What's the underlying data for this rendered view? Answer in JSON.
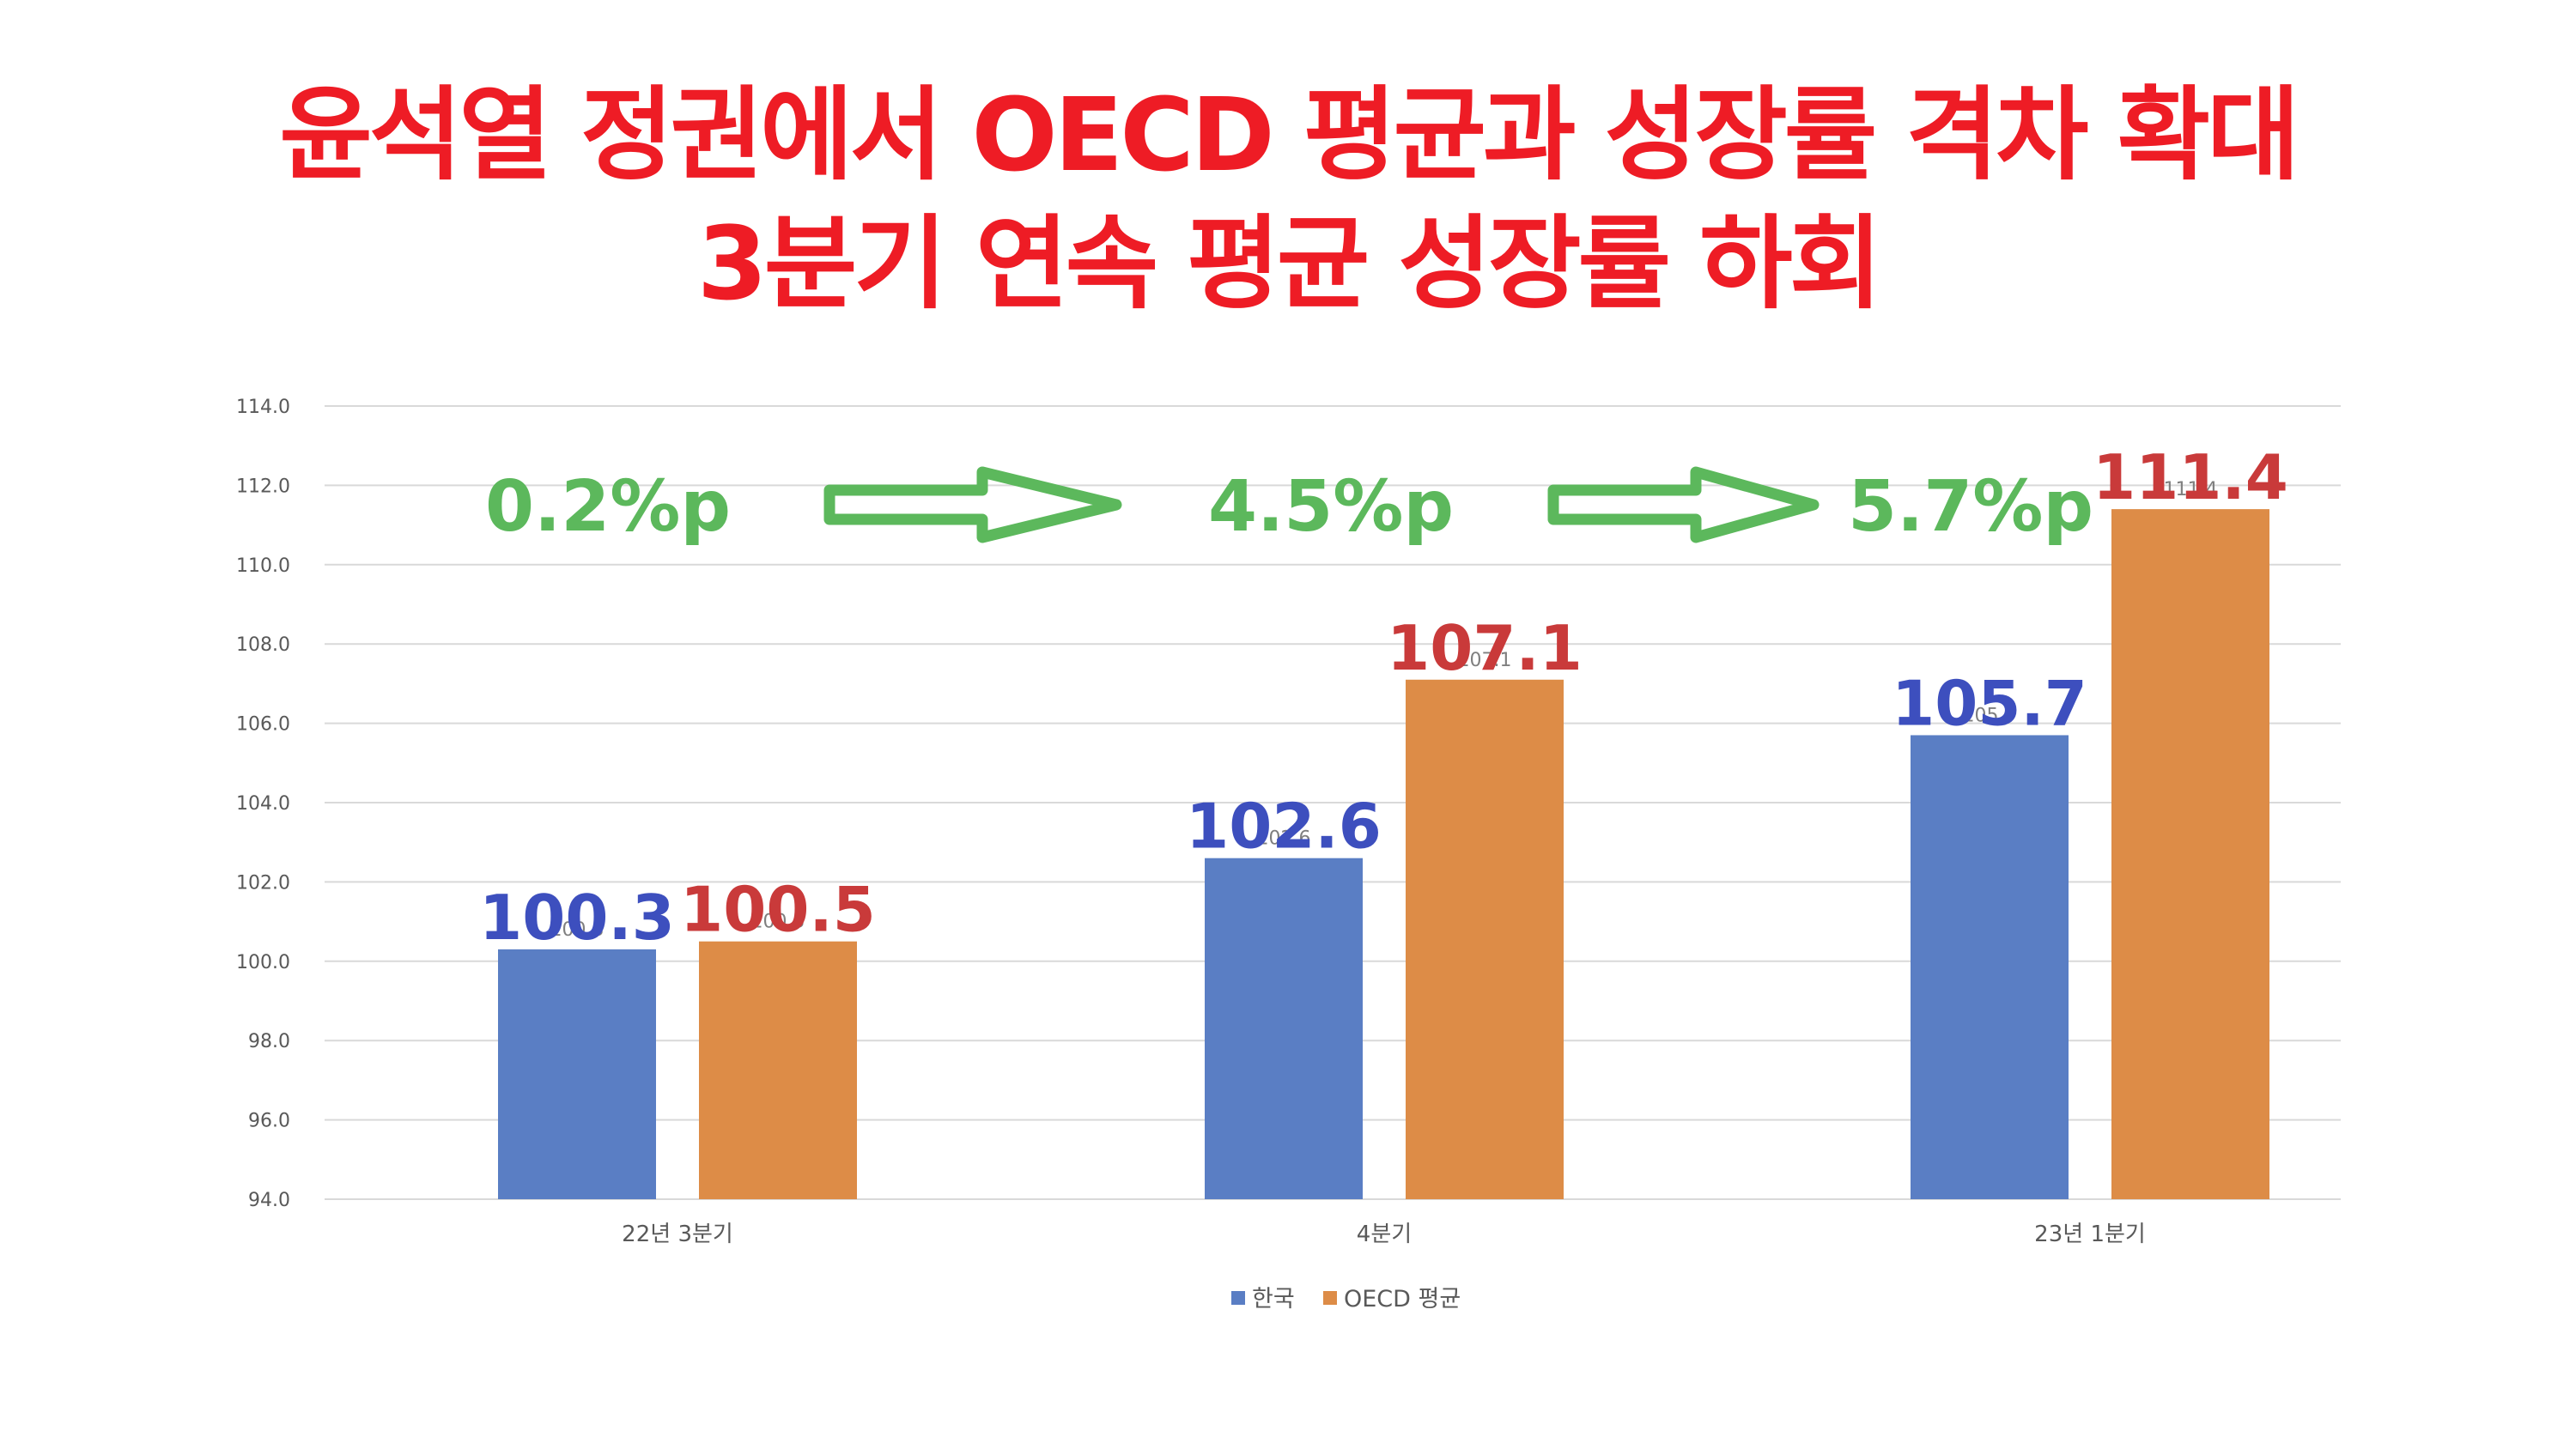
{
  "title": {
    "line1": "윤석열 정권에서 OECD 평균과 성장률 격차 확대",
    "line2": "3분기 연속 평균 성장률 하회"
  },
  "colors": {
    "title": "#ee1c25",
    "korea": "#5a7ec4",
    "oecd": "#dd8c47",
    "korea_label": "#3d4fbe",
    "oecd_label": "#c93a3a",
    "gap": "#5cb85c",
    "grid": "#d9d9d9"
  },
  "annotations": {
    "gaps": [
      "0.2%p",
      "4.5%p",
      "5.7%p"
    ],
    "arrows": [
      "right-arrow-icon",
      "right-arrow-icon"
    ]
  },
  "chart_data": {
    "type": "bar",
    "categories": [
      "22년 3분기",
      "4분기",
      "23년 1분기"
    ],
    "series": [
      {
        "name": "한국",
        "values": [
          100.3,
          102.6,
          105.7
        ]
      },
      {
        "name": "OECD 평균",
        "values": [
          100.5,
          107.1,
          111.4
        ]
      }
    ],
    "ylim": [
      94.0,
      114.0
    ],
    "yticks": [
      "94.0",
      "96.0",
      "98.0",
      "100.0",
      "102.0",
      "104.0",
      "106.0",
      "108.0",
      "110.0",
      "112.0",
      "114.0"
    ],
    "grid": true,
    "legend_position": "bottom-center",
    "data_labels": {
      "korea": [
        "100.3",
        "102.6",
        "105.7"
      ],
      "oecd": [
        "100.5",
        "107.1",
        "111.4"
      ]
    }
  }
}
